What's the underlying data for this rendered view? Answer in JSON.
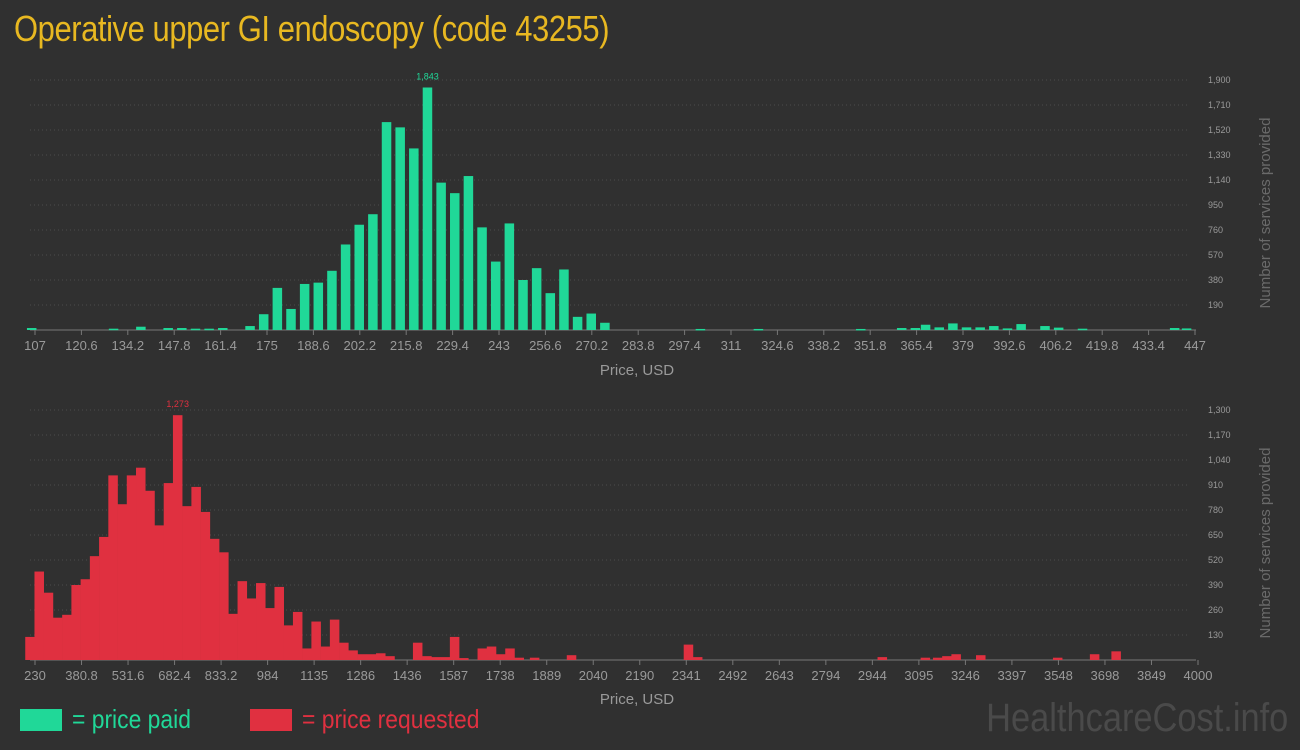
{
  "title": "Operative upper GI endoscopy (code 43255)",
  "watermark": "HealthcareCost.info",
  "colors": {
    "paid": "#20d898",
    "requested": "#e03040",
    "title": "#e8b821",
    "axis": "#9a9a9a",
    "grid": "#4a4a4a"
  },
  "legend": {
    "paid": "= price paid",
    "requested": "= price requested"
  },
  "chart_data": [
    {
      "type": "bar",
      "series": [
        {
          "name": "price paid",
          "color": "#20d898"
        }
      ],
      "xlabel": "Price, USD",
      "ylabel": "Number of services provided",
      "x_ticks": [
        "107",
        "120.6",
        "134.2",
        "147.8",
        "161.4",
        "175",
        "188.6",
        "202.2",
        "215.8",
        "229.4",
        "243",
        "256.6",
        "270.2",
        "283.8",
        "297.4",
        "311",
        "324.6",
        "338.2",
        "351.8",
        "365.4",
        "379",
        "392.6",
        "406.2",
        "419.8",
        "433.4",
        "447"
      ],
      "y_ticks": [
        "190",
        "380",
        "570",
        "760",
        "950",
        "1,140",
        "1,330",
        "1,520",
        "1,710",
        "1,900"
      ],
      "ylim": [
        0,
        1900
      ],
      "xlim": [
        107,
        447
      ],
      "peak_label": "1,843",
      "peak_value": 1843,
      "bars": [
        {
          "x": 107.5,
          "y": 15
        },
        {
          "x": 111.5,
          "y": 0
        },
        {
          "x": 115.5,
          "y": 0
        },
        {
          "x": 119.5,
          "y": 0
        },
        {
          "x": 123.5,
          "y": 0
        },
        {
          "x": 127.5,
          "y": 0
        },
        {
          "x": 131.5,
          "y": 10
        },
        {
          "x": 135.5,
          "y": 0
        },
        {
          "x": 139.5,
          "y": 25
        },
        {
          "x": 143.5,
          "y": 0
        },
        {
          "x": 147.5,
          "y": 15
        },
        {
          "x": 151.5,
          "y": 15
        },
        {
          "x": 155.5,
          "y": 10
        },
        {
          "x": 159.5,
          "y": 10
        },
        {
          "x": 163.5,
          "y": 15
        },
        {
          "x": 167.5,
          "y": 0
        },
        {
          "x": 171.5,
          "y": 30
        },
        {
          "x": 175.5,
          "y": 120
        },
        {
          "x": 179.5,
          "y": 320
        },
        {
          "x": 183.5,
          "y": 160
        },
        {
          "x": 187.5,
          "y": 350
        },
        {
          "x": 191.5,
          "y": 360
        },
        {
          "x": 195.5,
          "y": 450
        },
        {
          "x": 199.5,
          "y": 650
        },
        {
          "x": 203.5,
          "y": 800
        },
        {
          "x": 207.5,
          "y": 880
        },
        {
          "x": 211.5,
          "y": 1580
        },
        {
          "x": 215.5,
          "y": 1540
        },
        {
          "x": 219.5,
          "y": 1380
        },
        {
          "x": 223.5,
          "y": 1843
        },
        {
          "x": 227.5,
          "y": 1120
        },
        {
          "x": 231.5,
          "y": 1040
        },
        {
          "x": 235.5,
          "y": 1170
        },
        {
          "x": 239.5,
          "y": 780
        },
        {
          "x": 243.5,
          "y": 520
        },
        {
          "x": 247.5,
          "y": 810
        },
        {
          "x": 251.5,
          "y": 380
        },
        {
          "x": 255.5,
          "y": 470
        },
        {
          "x": 259.5,
          "y": 280
        },
        {
          "x": 263.5,
          "y": 460
        },
        {
          "x": 267.5,
          "y": 100
        },
        {
          "x": 271.5,
          "y": 125
        },
        {
          "x": 275.5,
          "y": 55
        },
        {
          "x": 303.5,
          "y": 8
        },
        {
          "x": 320.5,
          "y": 8
        },
        {
          "x": 350.5,
          "y": 8
        },
        {
          "x": 362.5,
          "y": 15
        },
        {
          "x": 366.5,
          "y": 15
        },
        {
          "x": 369.5,
          "y": 40
        },
        {
          "x": 373.5,
          "y": 20
        },
        {
          "x": 377.5,
          "y": 50
        },
        {
          "x": 381.5,
          "y": 20
        },
        {
          "x": 385.5,
          "y": 20
        },
        {
          "x": 389.5,
          "y": 30
        },
        {
          "x": 393.5,
          "y": 12
        },
        {
          "x": 397.5,
          "y": 45
        },
        {
          "x": 404.5,
          "y": 30
        },
        {
          "x": 408.5,
          "y": 18
        },
        {
          "x": 415.5,
          "y": 10
        },
        {
          "x": 442.5,
          "y": 15
        },
        {
          "x": 446,
          "y": 12
        }
      ]
    },
    {
      "type": "bar",
      "series": [
        {
          "name": "price requested",
          "color": "#e03040"
        }
      ],
      "xlabel": "Price, USD",
      "ylabel": "Number of services provided",
      "x_ticks": [
        "230",
        "380.8",
        "531.6",
        "682.4",
        "833.2",
        "984",
        "1135",
        "1286",
        "1436",
        "1587",
        "1738",
        "1889",
        "2040",
        "2190",
        "2341",
        "2492",
        "2643",
        "2794",
        "2944",
        "3095",
        "3246",
        "3397",
        "3548",
        "3698",
        "3849",
        "4000"
      ],
      "y_ticks": [
        "130",
        "260",
        "390",
        "520",
        "650",
        "780",
        "910",
        "1,040",
        "1,170",
        "1,300"
      ],
      "ylim": [
        0,
        1300
      ],
      "xlim": [
        230,
        4000
      ],
      "peak_label": "1,273",
      "peak_value": 1273,
      "bars": [
        {
          "x": 230,
          "y": 120
        },
        {
          "x": 260,
          "y": 460
        },
        {
          "x": 290,
          "y": 350
        },
        {
          "x": 320,
          "y": 220
        },
        {
          "x": 350,
          "y": 235
        },
        {
          "x": 380,
          "y": 390
        },
        {
          "x": 410,
          "y": 420
        },
        {
          "x": 440,
          "y": 540
        },
        {
          "x": 470,
          "y": 640
        },
        {
          "x": 500,
          "y": 960
        },
        {
          "x": 530,
          "y": 810
        },
        {
          "x": 560,
          "y": 960
        },
        {
          "x": 590,
          "y": 1000
        },
        {
          "x": 620,
          "y": 880
        },
        {
          "x": 650,
          "y": 700
        },
        {
          "x": 680,
          "y": 920
        },
        {
          "x": 710,
          "y": 1273
        },
        {
          "x": 740,
          "y": 800
        },
        {
          "x": 770,
          "y": 900
        },
        {
          "x": 800,
          "y": 770
        },
        {
          "x": 830,
          "y": 630
        },
        {
          "x": 860,
          "y": 560
        },
        {
          "x": 890,
          "y": 240
        },
        {
          "x": 920,
          "y": 410
        },
        {
          "x": 950,
          "y": 320
        },
        {
          "x": 980,
          "y": 400
        },
        {
          "x": 1010,
          "y": 270
        },
        {
          "x": 1040,
          "y": 380
        },
        {
          "x": 1070,
          "y": 180
        },
        {
          "x": 1100,
          "y": 250
        },
        {
          "x": 1130,
          "y": 60
        },
        {
          "x": 1160,
          "y": 200
        },
        {
          "x": 1190,
          "y": 70
        },
        {
          "x": 1220,
          "y": 210
        },
        {
          "x": 1250,
          "y": 90
        },
        {
          "x": 1280,
          "y": 50
        },
        {
          "x": 1310,
          "y": 30
        },
        {
          "x": 1340,
          "y": 30
        },
        {
          "x": 1370,
          "y": 35
        },
        {
          "x": 1400,
          "y": 20
        },
        {
          "x": 1490,
          "y": 90
        },
        {
          "x": 1520,
          "y": 20
        },
        {
          "x": 1550,
          "y": 15
        },
        {
          "x": 1580,
          "y": 15
        },
        {
          "x": 1610,
          "y": 120
        },
        {
          "x": 1640,
          "y": 10
        },
        {
          "x": 1700,
          "y": 60
        },
        {
          "x": 1730,
          "y": 70
        },
        {
          "x": 1760,
          "y": 30
        },
        {
          "x": 1790,
          "y": 60
        },
        {
          "x": 1820,
          "y": 12
        },
        {
          "x": 1870,
          "y": 12
        },
        {
          "x": 1990,
          "y": 25
        },
        {
          "x": 2370,
          "y": 80
        },
        {
          "x": 2400,
          "y": 15
        },
        {
          "x": 3000,
          "y": 15
        },
        {
          "x": 3140,
          "y": 12
        },
        {
          "x": 3180,
          "y": 12
        },
        {
          "x": 3210,
          "y": 20
        },
        {
          "x": 3240,
          "y": 30
        },
        {
          "x": 3320,
          "y": 25
        },
        {
          "x": 3570,
          "y": 12
        },
        {
          "x": 3690,
          "y": 30
        },
        {
          "x": 3760,
          "y": 45
        }
      ]
    }
  ]
}
